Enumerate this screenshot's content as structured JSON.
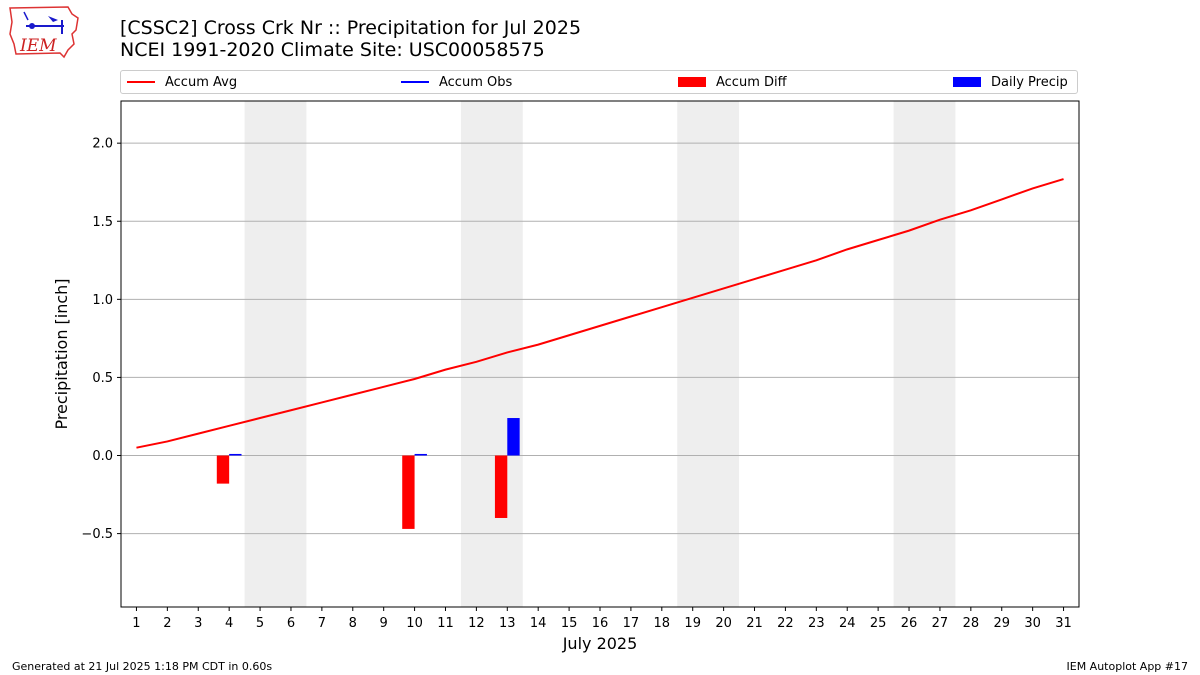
{
  "header": {
    "title_line1": "[CSSC2] Cross Crk Nr :: Precipitation for Jul 2025",
    "title_line2": "NCEI 1991-2020 Climate Site: USC00058575",
    "logo_text": "IEM"
  },
  "legend": {
    "accum_avg": "Accum Avg",
    "accum_obs": "Accum Obs",
    "accum_diff": "Accum Diff",
    "daily_precip": "Daily Precip"
  },
  "colors": {
    "avg": "#ff0000",
    "obs": "#0000ff",
    "diff": "#ff0000",
    "daily": "#0000ff",
    "weekend_shade": "#eeeeee",
    "grid": "#b0b0b0"
  },
  "footer": {
    "generated": "Generated at 21 Jul 2025 1:18 PM CDT in 0.60s",
    "app": "IEM Autoplot App #17"
  },
  "chart_data": {
    "type": "bar",
    "title": "[CSSC2] Cross Crk Nr :: Precipitation for Jul 2025",
    "subtitle": "NCEI 1991-2020 Climate Site: USC00058575",
    "xlabel": "July 2025",
    "ylabel": "Precipitation [inch]",
    "xlim": [
      0.5,
      31.5
    ],
    "ylim": [
      -0.97,
      2.27
    ],
    "yticks": [
      -0.5,
      0.0,
      0.5,
      1.0,
      1.5,
      2.0
    ],
    "ytick_labels": [
      "−0.5",
      "0.0",
      "0.5",
      "1.0",
      "1.5",
      "2.0"
    ],
    "categories": [
      "1",
      "2",
      "3",
      "4",
      "5",
      "6",
      "7",
      "8",
      "9",
      "10",
      "11",
      "12",
      "13",
      "14",
      "15",
      "16",
      "17",
      "18",
      "19",
      "20",
      "21",
      "22",
      "23",
      "24",
      "25",
      "26",
      "27",
      "28",
      "29",
      "30",
      "31"
    ],
    "weekend_spans": [
      [
        4.5,
        6.5
      ],
      [
        11.5,
        13.5
      ],
      [
        18.5,
        20.5
      ],
      [
        25.5,
        27.5
      ]
    ],
    "grid": "y",
    "legend_position": "top",
    "series": [
      {
        "name": "Accum Avg",
        "kind": "line",
        "x": [
          1,
          2,
          3,
          4,
          5,
          6,
          7,
          8,
          9,
          10,
          11,
          12,
          13,
          14,
          15,
          16,
          17,
          18,
          19,
          20,
          21,
          22,
          23,
          24,
          25,
          26,
          27,
          28,
          29,
          30,
          31
        ],
        "values": [
          0.05,
          0.09,
          0.14,
          0.19,
          0.24,
          0.29,
          0.34,
          0.39,
          0.44,
          0.49,
          0.55,
          0.6,
          0.66,
          0.71,
          0.77,
          0.83,
          0.89,
          0.95,
          1.01,
          1.07,
          1.13,
          1.19,
          1.25,
          1.32,
          1.38,
          1.44,
          1.51,
          1.57,
          1.64,
          1.71,
          1.77
        ]
      },
      {
        "name": "Accum Obs",
        "kind": "line",
        "x": [],
        "values": []
      },
      {
        "name": "Accum Diff",
        "kind": "bar",
        "offset": -0.2,
        "x": [
          4,
          10,
          13
        ],
        "values": [
          -0.18,
          -0.47,
          -0.4
        ]
      },
      {
        "name": "Daily Precip",
        "kind": "bar",
        "offset": 0.2,
        "x": [
          4,
          10,
          13
        ],
        "values": [
          0.01,
          0.01,
          0.24
        ]
      }
    ]
  }
}
